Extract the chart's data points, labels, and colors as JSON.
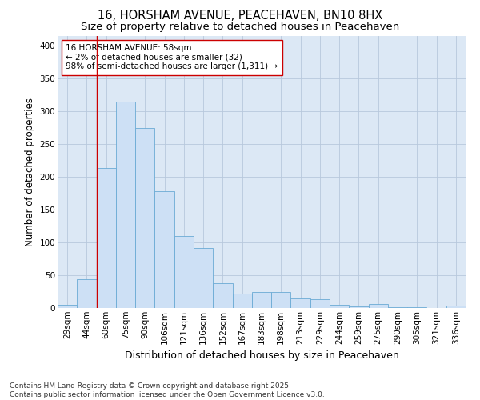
{
  "title_line1": "16, HORSHAM AVENUE, PEACEHAVEN, BN10 8HX",
  "title_line2": "Size of property relative to detached houses in Peacehaven",
  "xlabel": "Distribution of detached houses by size in Peacehaven",
  "ylabel": "Number of detached properties",
  "categories": [
    "29sqm",
    "44sqm",
    "60sqm",
    "75sqm",
    "90sqm",
    "106sqm",
    "121sqm",
    "136sqm",
    "152sqm",
    "167sqm",
    "183sqm",
    "198sqm",
    "213sqm",
    "229sqm",
    "244sqm",
    "259sqm",
    "275sqm",
    "290sqm",
    "305sqm",
    "321sqm",
    "336sqm"
  ],
  "values": [
    5,
    44,
    213,
    315,
    275,
    178,
    110,
    92,
    38,
    22,
    24,
    25,
    15,
    13,
    5,
    2,
    6,
    1,
    1,
    0,
    4
  ],
  "bar_color": "#cde0f5",
  "bar_edge_color": "#6aaad4",
  "grid_color": "#b8c8dc",
  "background_color": "#dce8f5",
  "vline_color": "#cc0000",
  "vline_x": 1.5,
  "annotation_text": "16 HORSHAM AVENUE: 58sqm\n← 2% of detached houses are smaller (32)\n98% of semi-detached houses are larger (1,311) →",
  "annotation_box_facecolor": "#ffffff",
  "annotation_box_edgecolor": "#cc0000",
  "ylim": [
    0,
    415
  ],
  "yticks": [
    0,
    50,
    100,
    150,
    200,
    250,
    300,
    350,
    400
  ],
  "footnote": "Contains HM Land Registry data © Crown copyright and database right 2025.\nContains public sector information licensed under the Open Government Licence v3.0.",
  "title_fontsize": 10.5,
  "subtitle_fontsize": 9.5,
  "ylabel_fontsize": 8.5,
  "xlabel_fontsize": 9,
  "tick_fontsize": 7.5,
  "annot_fontsize": 7.5,
  "footnote_fontsize": 6.5
}
